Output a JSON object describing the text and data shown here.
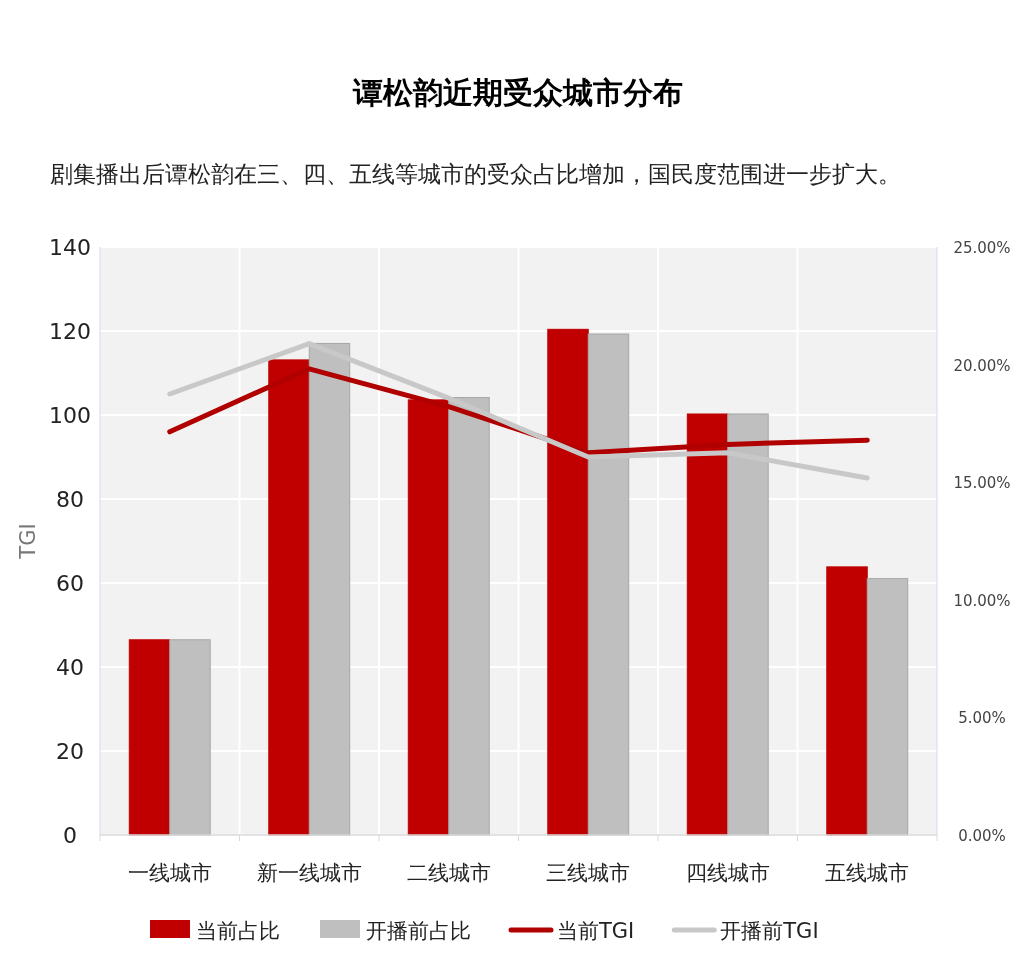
{
  "chart_data": {
    "type": "bar",
    "title": "谭松韵近期受众城市分布",
    "subtitle": "剧集播出后谭松韵在三、四、五线等城市的受众占比增加，国民度范围进一步扩大。",
    "ylabel": "TGI",
    "categories": [
      "一线城市",
      "新一线城市",
      "二线城市",
      "三线城市",
      "四线城市",
      "五线城市"
    ],
    "series": [
      {
        "name": "当前占比",
        "axis": "y2",
        "color": "#c00000",
        "values": [
          8.3,
          20.2,
          18.5,
          21.5,
          17.9,
          11.4
        ]
      },
      {
        "name": "开播前占比",
        "axis": "y2",
        "color": "#bfbfbf",
        "values": [
          8.3,
          20.9,
          18.6,
          21.3,
          17.9,
          10.9
        ]
      },
      {
        "name": "当前TGI",
        "type": "line",
        "axis": "y",
        "color": "#b00000",
        "values": [
          96,
          111,
          102,
          91,
          93,
          94
        ]
      },
      {
        "name": "开播前TGI",
        "type": "line",
        "axis": "y",
        "color": "#c8c8c8",
        "values": [
          105,
          117,
          104,
          90,
          91,
          85
        ]
      }
    ],
    "ylim": [
      0,
      140
    ],
    "yticks": [
      0,
      20,
      40,
      60,
      80,
      100,
      120,
      140
    ],
    "y2lim": [
      0,
      25
    ],
    "y2ticks": [
      {
        "value": 0,
        "label": "0.00%"
      },
      {
        "value": 5,
        "label": "5.00%"
      },
      {
        "value": 10,
        "label": "10.00%"
      },
      {
        "value": 15,
        "label": "15.00%"
      },
      {
        "value": 20,
        "label": "20.00%"
      },
      {
        "value": 25,
        "label": "25.00%"
      }
    ],
    "grid": true,
    "legend": "bottom"
  }
}
